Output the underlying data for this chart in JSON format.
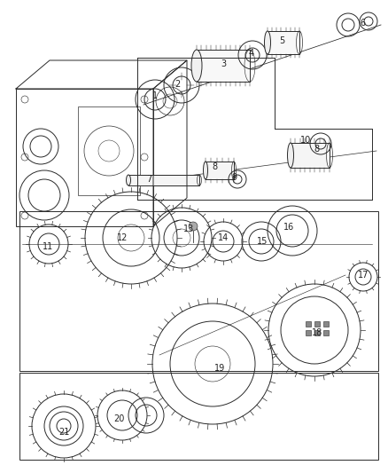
{
  "bg_color": "#ffffff",
  "lc": "#2a2a2a",
  "lw": 0.7,
  "fig_w": 4.39,
  "fig_h": 5.33,
  "dpi": 100,
  "labels": [
    [
      "1",
      175,
      108
    ],
    [
      "2",
      200,
      95
    ],
    [
      "3",
      252,
      72
    ],
    [
      "4",
      284,
      60
    ],
    [
      "5",
      318,
      46
    ],
    [
      "6",
      409,
      26
    ],
    [
      "7",
      168,
      202
    ],
    [
      "8",
      242,
      188
    ],
    [
      "8",
      357,
      168
    ],
    [
      "9",
      264,
      200
    ],
    [
      "10",
      345,
      158
    ],
    [
      "11",
      54,
      278
    ],
    [
      "12",
      138,
      268
    ],
    [
      "13",
      213,
      258
    ],
    [
      "14",
      252,
      268
    ],
    [
      "15",
      296,
      272
    ],
    [
      "16",
      326,
      256
    ],
    [
      "17",
      410,
      310
    ],
    [
      "18",
      358,
      375
    ],
    [
      "19",
      248,
      415
    ],
    [
      "20",
      134,
      472
    ],
    [
      "21",
      72,
      487
    ]
  ]
}
